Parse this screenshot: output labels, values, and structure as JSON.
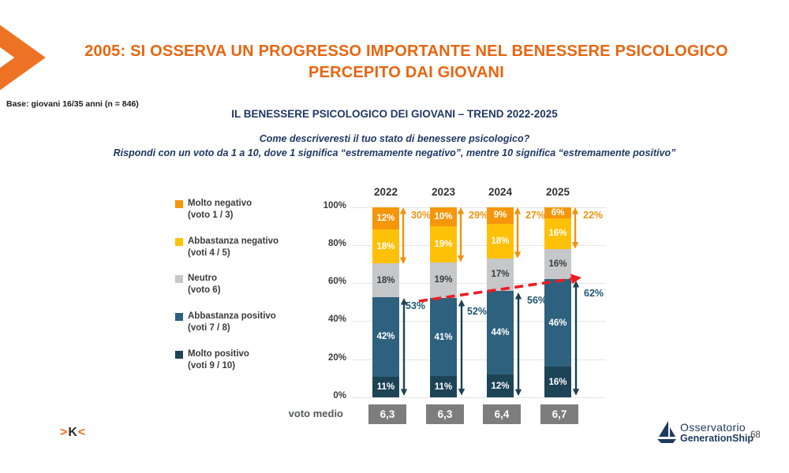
{
  "colors": {
    "title_orange": "#E8650F",
    "chevron_orange": "#ED7224",
    "navy_text": "#1F3864",
    "arrow_navy": "#1D4254",
    "arrow_orange": "#EE9311",
    "pos_label_blue": "#1D5570",
    "red_trend": "#EC1C24",
    "grid": "#E4E4E4",
    "box_gray": "#7D7D7D"
  },
  "header": {
    "title_line1": "2005: SI OSSERVA UN PROGRESSO IMPORTANTE NEL BENESSERE PSICOLOGICO",
    "title_line2": "PERCEPITO DAI GIOVANI",
    "base_note": "Base: giovani 16/35 anni (n = 846)"
  },
  "chart_header": {
    "title": "IL BENESSERE PSICOLOGICO DEI GIOVANI – TREND 2022-2025",
    "question_line1": "Come descriveresti il tuo stato di benessere psicologico?",
    "question_line2": "Rispondi con un voto da 1 a 10, dove 1 significa “estremamente negativo”, mentre 10 significa “estremamente positivo”"
  },
  "legend": {
    "items": [
      {
        "label": "Molto negativo",
        "sub": "(voto 1 / 3)",
        "color": "#F5960B"
      },
      {
        "label": "Abbastanza negativo",
        "sub": "(voti 4 / 5)",
        "color": "#FFC008"
      },
      {
        "label": "Neutro",
        "sub": "(voto 6)",
        "color": "#C6C7C9"
      },
      {
        "label": "Abbastanza positivo",
        "sub": "(voti 7 / 8)",
        "color": "#2E617E"
      },
      {
        "label": "Molto positivo",
        "sub": "(voti 9 / 10)",
        "color": "#1D4456"
      }
    ]
  },
  "chart_data": {
    "type": "bar",
    "stacked": true,
    "categories": [
      "2022",
      "2023",
      "2024",
      "2025"
    ],
    "series": [
      {
        "name": "Molto negativo (voto 1 / 3)",
        "color": "#F5960B",
        "label_color": "#FFFFFF",
        "values": [
          12,
          10,
          9,
          6
        ]
      },
      {
        "name": "Abbastanza negativo (voti 4 / 5)",
        "color": "#FFC008",
        "label_color": "#FFFFFF",
        "values": [
          18,
          19,
          18,
          16
        ]
      },
      {
        "name": "Neutro (voto 6)",
        "color": "#C6C7C9",
        "label_color": "#3C3C3C",
        "values": [
          18,
          19,
          17,
          16
        ]
      },
      {
        "name": "Abbastanza positivo (voti 7 / 8)",
        "color": "#2E617E",
        "label_color": "#FFFFFF",
        "values": [
          42,
          41,
          44,
          46
        ]
      },
      {
        "name": "Molto positivo (voti 9 / 10)",
        "color": "#1D4456",
        "label_color": "#FFFFFF",
        "values": [
          11,
          11,
          12,
          16
        ]
      }
    ],
    "value_suffix": "%",
    "negative_totals": [
      "30%",
      "29%",
      "27%",
      "22%"
    ],
    "positive_totals": [
      "53%",
      "52%",
      "56%",
      "62%"
    ],
    "y_ticks": [
      "100%",
      "80%",
      "60%",
      "40%",
      "20%",
      "0%"
    ],
    "ylim": [
      0,
      100
    ],
    "grid": true,
    "legend_position": "left",
    "trend_line": {
      "style": "red dashed arrow",
      "from": {
        "year": "2022",
        "value": 53
      },
      "to": {
        "year": "2025",
        "value": 62
      }
    },
    "voto_medio": {
      "label": "voto medio",
      "values": [
        "6,3",
        "6,3",
        "6,4",
        "6,7"
      ]
    }
  },
  "footer": {
    "logo": {
      "left": ">",
      "middle": "K",
      "right": "<"
    },
    "brand_line1": "Osservatorio",
    "brand_line2": "GenerationShip",
    "page_number": "68"
  }
}
